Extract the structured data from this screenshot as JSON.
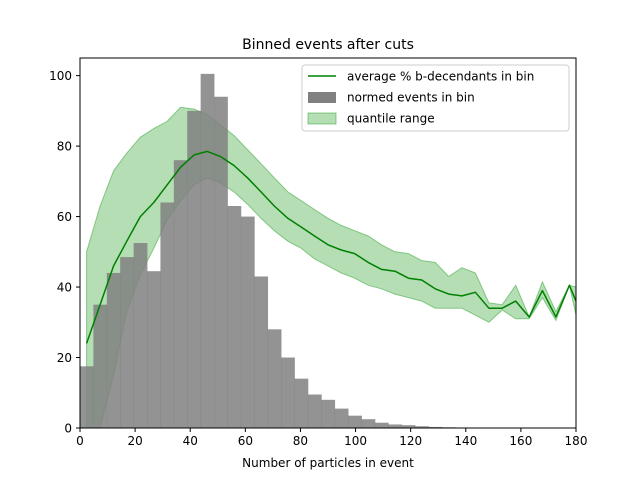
{
  "chart_data": {
    "type": "bar",
    "title": "Binned events after cuts",
    "xlabel": "Number of particles in event",
    "ylabel": "",
    "xlim": [
      0,
      180
    ],
    "ylim": [
      0,
      105
    ],
    "xticks": [
      0,
      20,
      40,
      60,
      80,
      100,
      120,
      140,
      160,
      180
    ],
    "yticks": [
      0,
      20,
      40,
      60,
      80,
      100
    ],
    "legend_position": "top-right",
    "legend": [
      "average % b-decendants in bin",
      "normed events in bin",
      "quantile range"
    ],
    "histogram": {
      "name": "normed events in bin",
      "color": "#808080",
      "bin_width": 4.86,
      "bin_left_edges": [
        0,
        4.86,
        9.73,
        14.59,
        19.46,
        24.32,
        29.19,
        34.05,
        38.92,
        43.78,
        48.65,
        53.51,
        58.38,
        63.24,
        68.11,
        72.97,
        77.84,
        82.7,
        87.57,
        92.43,
        97.3,
        102.16,
        107.03,
        111.89,
        116.76,
        121.62,
        126.49,
        131.35
      ],
      "values": [
        17.5,
        35,
        44,
        48.5,
        52.5,
        44.5,
        64,
        76,
        90,
        100.5,
        94,
        63,
        60,
        43,
        28,
        20,
        14,
        9.5,
        8,
        5.5,
        3.5,
        2.5,
        1.5,
        1,
        0.8,
        0.5,
        0.3,
        0.2
      ]
    },
    "series": [
      {
        "name": "average % b-decendants in bin",
        "color": "#008000",
        "x": [
          2.4,
          7.3,
          12.2,
          17,
          21.9,
          26.8,
          31.6,
          36.5,
          41.4,
          46.2,
          51.1,
          55.9,
          60.8,
          65.7,
          70.5,
          75.4,
          80.3,
          85.1,
          90,
          94.8,
          99.7,
          104.6,
          109.4,
          114.3,
          119.2,
          124,
          128.9,
          133.8,
          138.6,
          143.5,
          148.4,
          153.2,
          158.1,
          163,
          167.8,
          172.7,
          177.6,
          180
        ],
        "values": [
          24,
          35,
          46,
          53,
          60,
          64,
          69,
          74,
          77.5,
          78.5,
          77,
          74.5,
          71,
          67,
          63,
          59.5,
          57,
          54.5,
          52,
          50.5,
          49.5,
          47,
          45,
          44.5,
          42.5,
          42,
          39.5,
          38,
          37.5,
          38.5,
          34,
          34,
          36,
          31.5,
          39,
          31.5,
          40.5,
          36
        ]
      }
    ],
    "band": {
      "name": "quantile range",
      "color": "#2ca02c",
      "x": [
        2.4,
        7.3,
        12.2,
        17,
        21.9,
        26.8,
        31.6,
        36.5,
        41.4,
        46.2,
        51.1,
        55.9,
        60.8,
        65.7,
        70.5,
        75.4,
        80.3,
        85.1,
        90,
        94.8,
        99.7,
        104.6,
        109.4,
        114.3,
        119.2,
        124,
        128.9,
        133.8,
        138.6,
        143.5,
        148.4,
        153.2,
        158.1,
        163,
        167.8,
        172.7,
        177.6,
        180
      ],
      "upper": [
        50,
        63,
        73,
        78,
        82.5,
        85,
        87,
        91,
        90.5,
        89,
        86,
        83,
        79,
        75,
        71,
        67,
        64.5,
        62,
        59.5,
        57.5,
        56,
        54.5,
        52,
        50,
        49.5,
        47.5,
        47,
        43,
        45.5,
        44,
        35.5,
        35,
        40.5,
        31.5,
        41.5,
        33,
        40.5,
        40
      ],
      "lower": [
        0,
        0,
        15,
        33,
        43.5,
        51,
        59,
        64.5,
        69,
        71,
        69.5,
        67,
        63.5,
        59.5,
        56,
        53,
        51,
        48,
        46,
        44,
        42.5,
        40.5,
        39.5,
        38,
        37,
        36,
        34,
        34,
        34,
        32,
        30,
        33.5,
        31,
        31,
        37,
        30.5,
        40.5,
        32
      ]
    }
  }
}
